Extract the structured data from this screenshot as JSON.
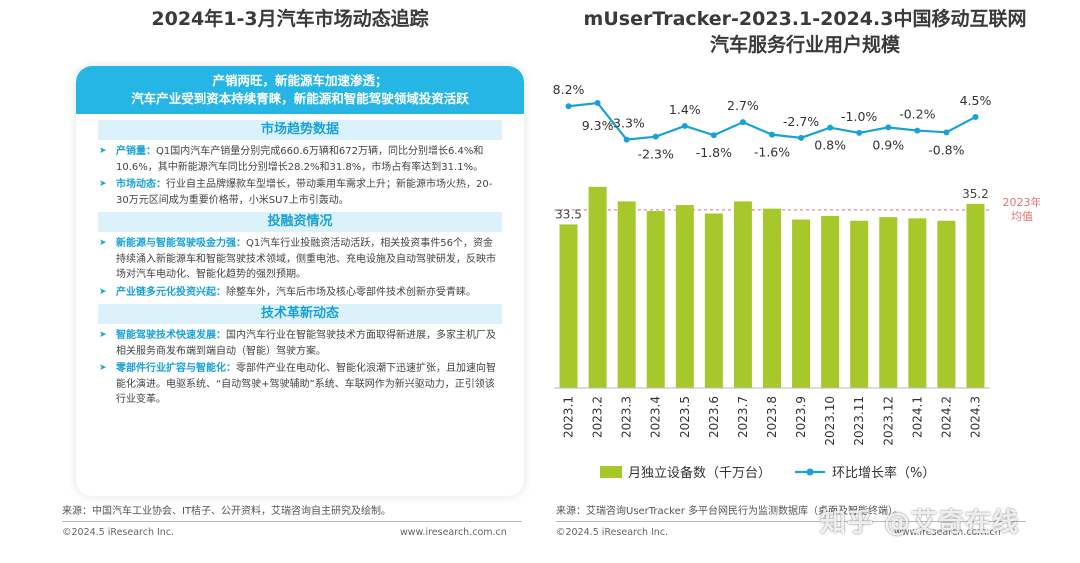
{
  "left": {
    "title": "2024年1-3月汽车市场动态追踪",
    "header_line1": "产销两旺，新能源车加速渗透；",
    "header_line2": "汽车产业受到资本持续青睐，新能源和智能驾驶领域投资活跃",
    "sections": [
      {
        "title": "市场趋势数据",
        "bullets": [
          {
            "key": "产销量：",
            "text": "Q1国内汽车产销量分别完成660.6万辆和672万辆，同比分别增长6.4%和10.6%，其中新能源汽车同比分别增长28.2%和31.8%，市场占有率达到31.1%。"
          },
          {
            "key": "市场动态：",
            "text": "行业自主品牌爆款车型增长，带动乘用车需求上升；新能源市场火热，20-30万元区间成为重要价格带，小米SU7上市引轰动。"
          }
        ]
      },
      {
        "title": "投融资情况",
        "bullets": [
          {
            "key": "新能源与智能驾驶吸金力强：",
            "text": "Q1汽车行业投融资活动活跃，相关投资事件56个，资金持续涌入新能源车和智能驾驶技术领域，侧重电池、充电设施及自动驾驶研发，反映市场对汽车电动化、智能化趋势的强烈预期。"
          },
          {
            "key": "产业链多元化投资兴起：",
            "text": "除整车外，汽车后市场及核心零部件技术创新亦受青睐。"
          }
        ]
      },
      {
        "title": "技术革新动态",
        "bullets": [
          {
            "key": "智能驾驶技术快速发展：",
            "text": "国内汽车行业在智能驾驶技术方面取得新进展，多家主机厂及相关服务商发布端到端自动（智能）驾驶方案。"
          },
          {
            "key": "零部件行业扩容与智能化：",
            "text": "零部件产业在电动化、智能化浪潮下迅速扩张，且加速向智能化演进。电驱系统、“自动驾驶+驾驶辅助”系统、车联网作为新兴驱动力，正引领该行业变革。"
          }
        ]
      }
    ],
    "source": "来源：中国汽车工业协会、IT桔子、公开资料，艾瑞咨询自主研究及绘制。",
    "copyright": "©2024.5 iResearch Inc.",
    "url": "www.iresearch.com.cn"
  },
  "right": {
    "title_line1": "mUserTracker-2023.1-2024.3中国移动互联网",
    "title_line2": "汽车服务行业用户规模",
    "source": "来源：艾瑞咨询UserTracker 多平台网民行为监测数据库（桌面及智能终端）。",
    "copyright": "©2024.5 iResearch Inc.",
    "url": "www.iresearch.com.cn",
    "watermark": "知乎 @艾奇在线"
  },
  "chart_data": {
    "type": "bar",
    "categories": [
      "2023.1",
      "2023.2",
      "2023.3",
      "2023.4",
      "2023.5",
      "2023.6",
      "2023.7",
      "2023.8",
      "2023.9",
      "2023.10",
      "2023.11",
      "2023.12",
      "2024.1",
      "2024.2",
      "2024.3"
    ],
    "series": [
      {
        "name": "月独立设备数（千万台）",
        "type": "bar",
        "values": [
          33.5,
          36.6,
          35.4,
          34.6,
          35.1,
          34.4,
          35.4,
          34.8,
          33.9,
          34.2,
          33.8,
          34.1,
          34.0,
          33.8,
          35.2
        ],
        "shown_labels": {
          "0": "33.5",
          "14": "35.2"
        },
        "color": "#a6c82a"
      },
      {
        "name": "环比增长率（%）",
        "type": "line",
        "values": [
          8.2,
          9.3,
          -3.3,
          -2.3,
          1.4,
          -1.8,
          2.7,
          -1.6,
          -2.7,
          0.8,
          -1.0,
          0.9,
          -0.2,
          -0.8,
          4.5
        ],
        "labels": [
          "8.2%",
          "9.3%",
          "-3.3%",
          "-2.3%",
          "1.4%",
          "-1.8%",
          "2.7%",
          "-1.6%",
          "-2.7%",
          "0.8%",
          "-1.0%",
          "0.9%",
          "-0.2%",
          "-0.8%",
          "4.5%"
        ],
        "color": "#1aa2d8"
      }
    ],
    "reference_line": {
      "label_line1": "2023年",
      "label_line2": "均值",
      "value": 34.7,
      "color": "#e57373"
    },
    "bar_ylim": [
      0,
      40
    ],
    "legend_position": "bottom"
  }
}
